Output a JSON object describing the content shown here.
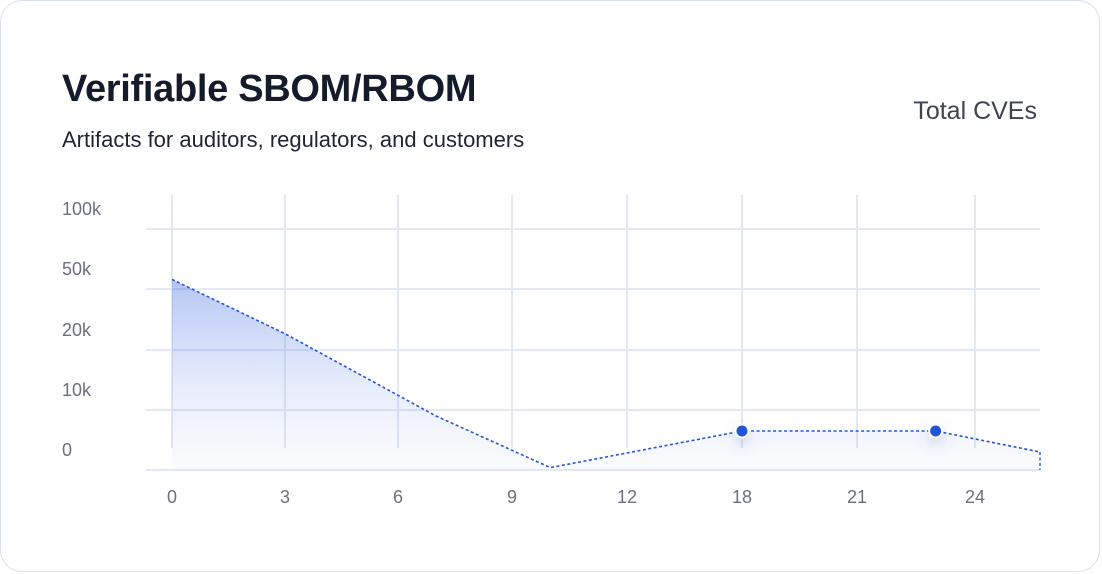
{
  "card": {
    "title": "Verifiable SBOM/RBOM",
    "subtitle": "Artifacts for auditors, regulators, and customers"
  },
  "chart_data": {
    "type": "area",
    "title": "Verifiable SBOM/RBOM",
    "subtitle": "Artifacts for auditors, regulators, and customers",
    "legend": "Total CVEs",
    "legend_position": "top-right",
    "x_ticks": [
      "0",
      "3",
      "6",
      "9",
      "12",
      "18",
      "21",
      "24"
    ],
    "y_ticks": [
      "0",
      "10k",
      "20k",
      "50k",
      "100k"
    ],
    "y_scale": "categorical-log-like",
    "grid": true,
    "series": [
      {
        "name": "Total CVEs",
        "style": "dashed",
        "color": "#2355d8",
        "points": [
          {
            "x": 0,
            "y": 58000,
            "marker": false
          },
          {
            "x": 3,
            "y": 28000,
            "marker": false
          },
          {
            "x": 7,
            "y": 9000,
            "marker": false
          },
          {
            "x": 10,
            "y": 400,
            "marker": false
          },
          {
            "x": 18,
            "y": 6500,
            "marker": true
          },
          {
            "x": 23,
            "y": 6500,
            "marker": true
          },
          {
            "x": 26,
            "y": 3000,
            "marker": false
          }
        ]
      }
    ]
  }
}
